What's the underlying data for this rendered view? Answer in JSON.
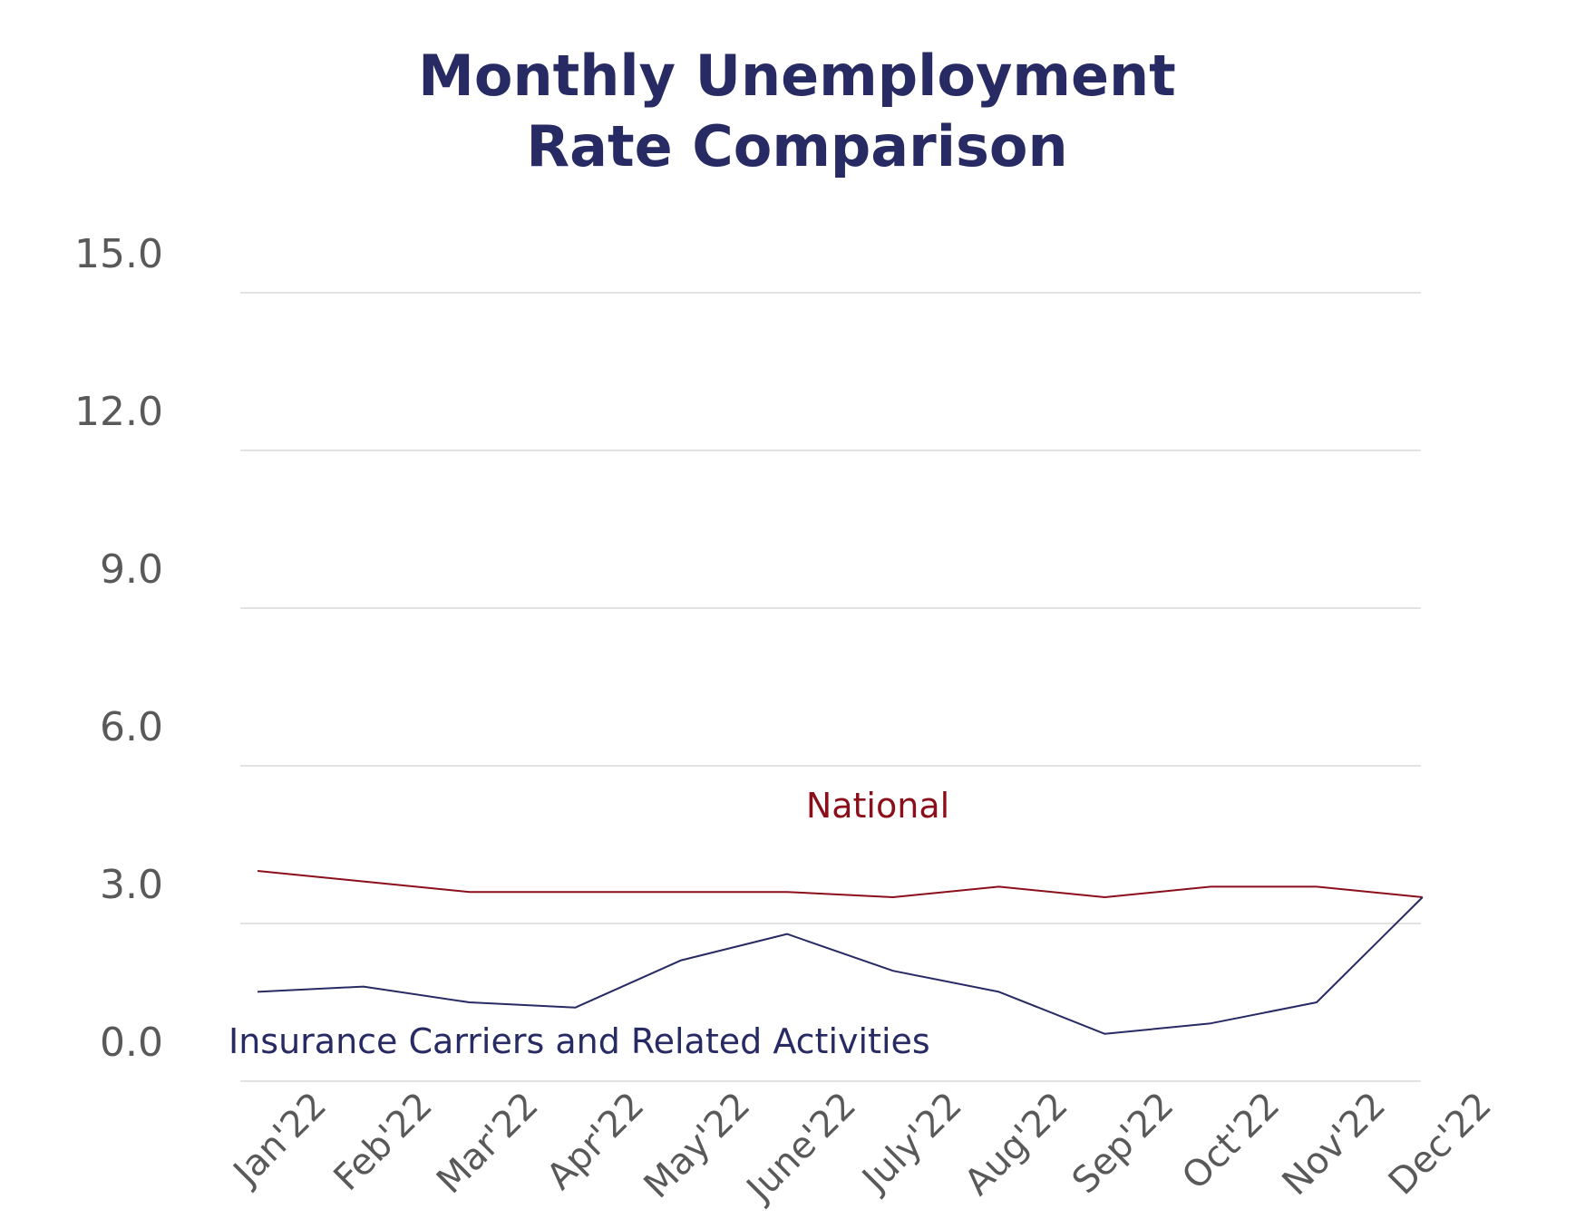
{
  "chart_data": {
    "type": "line",
    "title_lines": [
      "Monthly Unemployment",
      "Rate Comparison"
    ],
    "xlabel": "",
    "ylabel": "",
    "categories": [
      "Jan'22",
      "Feb'22",
      "Mar'22",
      "Apr'22",
      "May'22",
      "June'22",
      "July'22",
      "Aug'22",
      "Sep'22",
      "Oct'22",
      "Nov'22",
      "Dec'22"
    ],
    "y_ticks": [
      "0.0",
      "3.0",
      "6.0",
      "9.0",
      "12.0",
      "15.0"
    ],
    "ylim": [
      0,
      15
    ],
    "grid": true,
    "legend": "inline",
    "series": [
      {
        "name": "National",
        "color": "#8b0f1a",
        "values": [
          4.0,
          3.8,
          3.6,
          3.6,
          3.6,
          3.6,
          3.5,
          3.7,
          3.5,
          3.7,
          3.7,
          3.5
        ]
      },
      {
        "name": "Insurance Carriers and Related Activities",
        "color": "#272a63",
        "values": [
          1.7,
          1.8,
          1.5,
          1.4,
          2.3,
          2.8,
          2.1,
          1.7,
          0.9,
          1.1,
          1.5,
          3.5
        ]
      }
    ],
    "title_color": "#272a63"
  }
}
